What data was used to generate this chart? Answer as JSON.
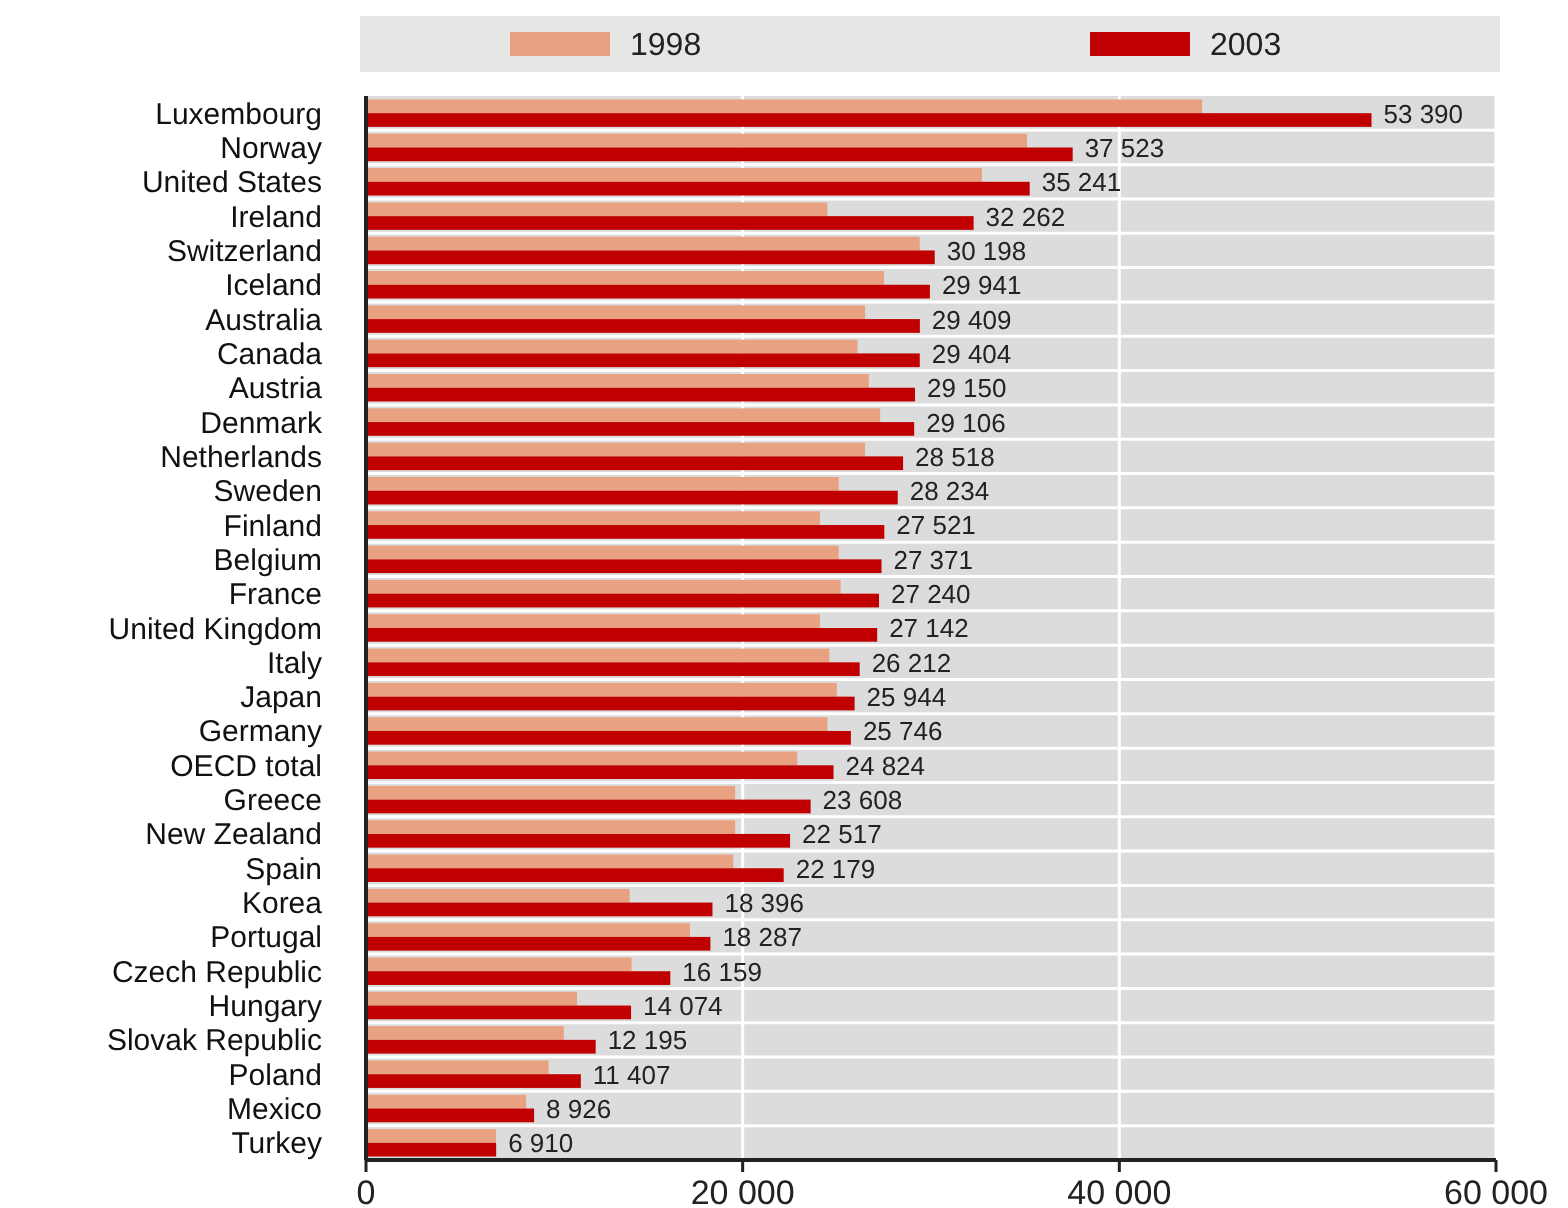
{
  "chart_data": {
    "type": "bar",
    "orientation": "horizontal",
    "categories": [
      "Luxembourg",
      "Norway",
      "United States",
      "Ireland",
      "Switzerland",
      "Iceland",
      "Australia",
      "Canada",
      "Austria",
      "Denmark",
      "Netherlands",
      "Sweden",
      "Finland",
      "Belgium",
      "France",
      "United Kingdom",
      "Italy",
      "Japan",
      "Germany",
      "OECD total",
      "Greece",
      "New Zealand",
      "Spain",
      "Korea",
      "Portugal",
      "Czech Republic",
      "Hungary",
      "Slovak Republic",
      "Poland",
      "Mexico",
      "Turkey"
    ],
    "series": [
      {
        "name": "1998",
        "color": "#e8a282",
        "values": [
          44400,
          35100,
          32700,
          24500,
          29400,
          27500,
          26500,
          26100,
          26700,
          27300,
          26500,
          25100,
          24100,
          25100,
          25200,
          24100,
          24600,
          25000,
          24500,
          22900,
          19600,
          19600,
          19500,
          14000,
          17200,
          14100,
          11200,
          10500,
          9700,
          8500,
          6900
        ]
      },
      {
        "name": "2003",
        "color": "#c00000",
        "values": [
          53390,
          37523,
          35241,
          32262,
          30198,
          29941,
          29409,
          29404,
          29150,
          29106,
          28518,
          28234,
          27521,
          27371,
          27240,
          27142,
          26212,
          25944,
          25746,
          24824,
          23608,
          22517,
          22179,
          18396,
          18287,
          16159,
          14074,
          12195,
          11407,
          8926,
          6910
        ],
        "value_labels": [
          "53 390",
          "37 523",
          "35 241",
          "32 262",
          "30 198",
          "29 941",
          "29 409",
          "29 404",
          "29 150",
          "29 106",
          "28 518",
          "28 234",
          "27 521",
          "27 371",
          "27 240",
          "27 142",
          "26 212",
          "25 944",
          "25 746",
          "24 824",
          "23 608",
          "22 517",
          "22 179",
          "18 396",
          "18 287",
          "16 159",
          "14 074",
          "12 195",
          "11 407",
          "8 926",
          "6 910"
        ]
      }
    ],
    "xlim": [
      0,
      60000
    ],
    "xticks": [
      {
        "value": 0,
        "label": "0"
      },
      {
        "value": 20000,
        "label": "20 000"
      },
      {
        "value": 40000,
        "label": "40 000"
      },
      {
        "value": 60000,
        "label": "60 000"
      }
    ],
    "grid": "x",
    "legend": "top"
  }
}
